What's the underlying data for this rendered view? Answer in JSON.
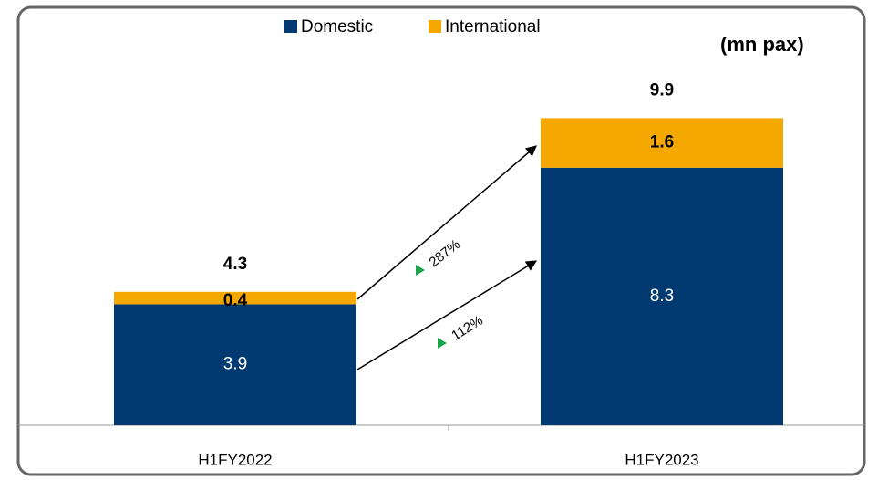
{
  "chart_data": {
    "type": "bar",
    "stacked": true,
    "unit": "(mn pax)",
    "categories": [
      "H1FY2022",
      "H1FY2023"
    ],
    "series": [
      {
        "name": "Domestic",
        "color": "#003a70",
        "values": [
          3.9,
          8.3
        ]
      },
      {
        "name": "International",
        "color": "#f5a800",
        "values": [
          0.4,
          1.6
        ]
      }
    ],
    "totals": [
      4.3,
      9.9
    ],
    "annotations": [
      "287%",
      "112%"
    ]
  }
}
